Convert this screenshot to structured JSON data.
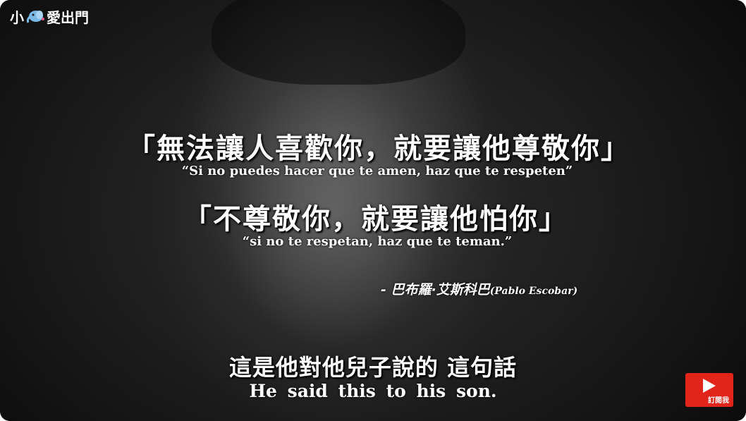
{
  "brand": {
    "prefix": "小",
    "suffix": "愛出門"
  },
  "quote1": {
    "chinese": "「無法讓人喜歡你，就要讓他尊敬你」",
    "spanish": "“Si no puedes hacer que te amen, haz que te respeten”"
  },
  "quote2": {
    "chinese": "「不尊敬你，就要讓他怕你」",
    "spanish": "“si no te respetan, haz que te teman.”"
  },
  "attribution": {
    "chinese": "- 巴布羅·艾斯科巴",
    "latin": "(Pablo Escobar)"
  },
  "subtitle": {
    "chinese": "這是他對他兒子說的  這句話",
    "english": "He said this to his son."
  },
  "subscribe_button": {
    "label": "訂閱我",
    "color": "#e1251b"
  },
  "icons": {
    "brand_logo": "elephant-icon",
    "subscribe": "play-icon"
  }
}
